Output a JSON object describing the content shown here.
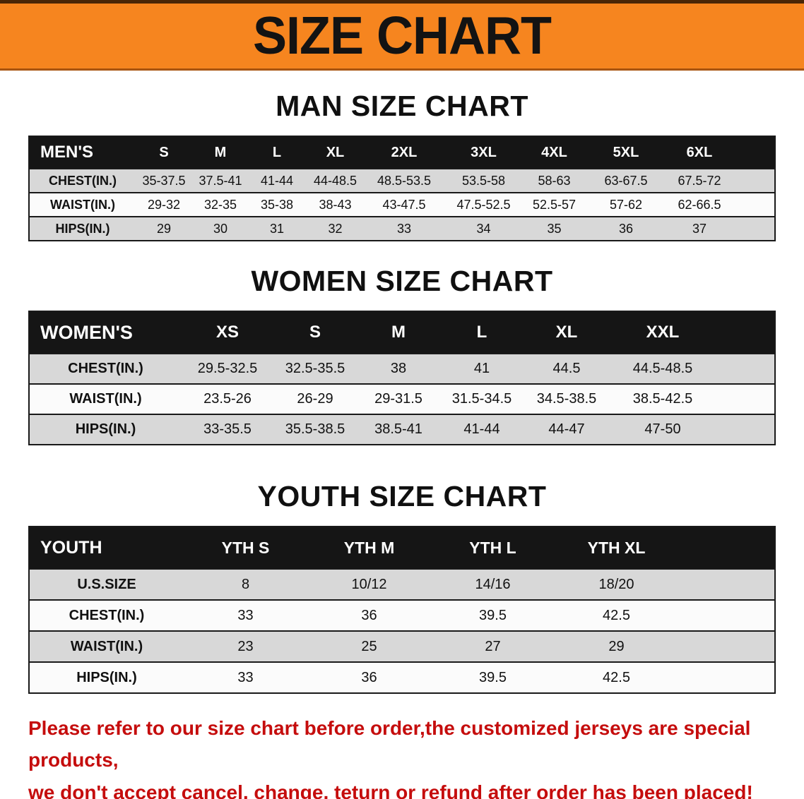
{
  "banner": {
    "title": "SIZE CHART"
  },
  "colors": {
    "banner_bg": "#f6851f",
    "table_header_bg": "#151515",
    "stripe_bg": "#d8d8d8",
    "notice_text": "#c50d0d"
  },
  "sections": [
    {
      "id": "men",
      "heading": "MAN SIZE CHART",
      "table": {
        "header": [
          "MEN'S",
          "S",
          "M",
          "L",
          "XL",
          "2XL",
          "3XL",
          "4XL",
          "5XL",
          "6XL"
        ],
        "rows": [
          [
            "CHEST(IN.)",
            "35-37.5",
            "37.5-41",
            "41-44",
            "44-48.5",
            "48.5-53.5",
            "53.5-58",
            "58-63",
            "63-67.5",
            "67.5-72"
          ],
          [
            "WAIST(IN.)",
            "29-32",
            "32-35",
            "35-38",
            "38-43",
            "43-47.5",
            "47.5-52.5",
            "52.5-57",
            "57-62",
            "62-66.5"
          ],
          [
            "HIPS(IN.)",
            "29",
            "30",
            "31",
            "32",
            "33",
            "34",
            "35",
            "36",
            "37"
          ]
        ]
      }
    },
    {
      "id": "women",
      "heading": "WOMEN SIZE CHART",
      "table": {
        "header": [
          "WOMEN'S",
          "XS",
          "S",
          "M",
          "L",
          "XL",
          "XXL"
        ],
        "rows": [
          [
            "CHEST(IN.)",
            "29.5-32.5",
            "32.5-35.5",
            "38",
            "41",
            "44.5",
            "44.5-48.5"
          ],
          [
            "WAIST(IN.)",
            "23.5-26",
            "26-29",
            "29-31.5",
            "31.5-34.5",
            "34.5-38.5",
            "38.5-42.5"
          ],
          [
            "HIPS(IN.)",
            "33-35.5",
            "35.5-38.5",
            "38.5-41",
            "41-44",
            "44-47",
            "47-50"
          ]
        ]
      }
    },
    {
      "id": "youth",
      "heading": "YOUTH SIZE CHART",
      "table": {
        "header": [
          "YOUTH",
          "YTH S",
          "YTH M",
          "YTH L",
          "YTH XL"
        ],
        "rows": [
          [
            "U.S.SIZE",
            "8",
            "10/12",
            "14/16",
            "18/20"
          ],
          [
            "CHEST(IN.)",
            "33",
            "36",
            "39.5",
            "42.5"
          ],
          [
            "WAIST(IN.)",
            "23",
            "25",
            "27",
            "29"
          ],
          [
            "HIPS(IN.)",
            "33",
            "36",
            "39.5",
            "42.5"
          ]
        ]
      }
    }
  ],
  "notice": {
    "line1": "Please refer to our size chart before order,the customized jerseys are special products,",
    "line2": "we don't accept cancel, change, teturn or refund after order has been placed!"
  }
}
